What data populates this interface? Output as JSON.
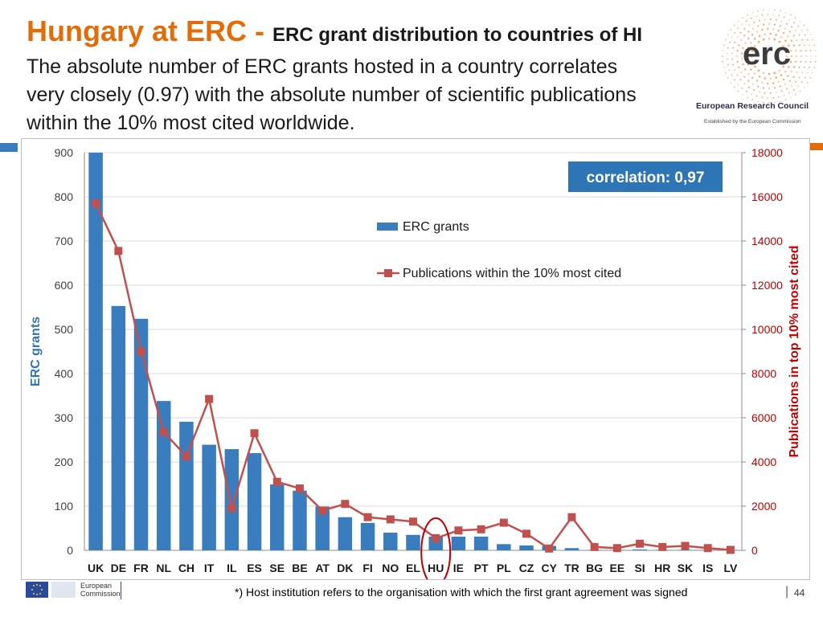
{
  "slide": {
    "title_main": "Hungary at ERC - ",
    "title_sub": "ERC grant distribution to countries of HI",
    "intro_lines": [
      "The absolute number of ERC grants hosted in a country correlates",
      "very closely (0.97) with the absolute number of scientific publications",
      "within the 10% most cited worldwide."
    ],
    "logo": {
      "wordmark": "erc",
      "org_name": "European Research Council",
      "tagline": "Established by the European Commission"
    },
    "footer": {
      "ec_label_1": "European",
      "ec_label_2": "Commission",
      "note": "*) Host institution refers to the organisation with which the first grant agreement was signed",
      "separator": "|",
      "page_number": "44"
    },
    "colors": {
      "title_orange": "#e36c0a",
      "bar_blue": "#3a7dbf",
      "line_red": "#c0504d",
      "corr_box": "#2e75b6",
      "highlight_ring": "#c00000"
    }
  },
  "chart_data": {
    "type": "bar",
    "categories": [
      "UK",
      "DE",
      "FR",
      "NL",
      "CH",
      "IT",
      "IL",
      "ES",
      "SE",
      "BE",
      "AT",
      "DK",
      "FI",
      "NO",
      "EL",
      "HU",
      "IE",
      "PT",
      "PL",
      "CZ",
      "CY",
      "TR",
      "BG",
      "EE",
      "SI",
      "HR",
      "SK",
      "IS",
      "LV"
    ],
    "series": [
      {
        "name": "ERC grants",
        "type": "bar",
        "axis": "left",
        "values": [
          900,
          553,
          524,
          338,
          291,
          239,
          229,
          220,
          149,
          135,
          99,
          75,
          62,
          40,
          35,
          31,
          31,
          31,
          14,
          11,
          10,
          5,
          1,
          1,
          2,
          1,
          1,
          1,
          1
        ]
      },
      {
        "name": "Publications within the 10% most cited",
        "type": "line",
        "axis": "right",
        "values": [
          15700,
          13550,
          9000,
          5350,
          4250,
          6850,
          1900,
          5300,
          3100,
          2800,
          1800,
          2100,
          1500,
          1400,
          1300,
          550,
          900,
          950,
          1250,
          750,
          80,
          1500,
          150,
          100,
          300,
          150,
          200,
          100,
          20
        ]
      }
    ],
    "left_axis": {
      "label": "ERC grants",
      "ylim": [
        0,
        900
      ],
      "ticks": [
        "0",
        "100",
        "200",
        "300",
        "400",
        "500",
        "600",
        "700",
        "800",
        "900"
      ]
    },
    "right_axis": {
      "label": "Publications in top 10% most cited",
      "ylim": [
        0,
        18000
      ],
      "ticks": [
        "0",
        "2000",
        "4000",
        "6000",
        "8000",
        "10000",
        "12000",
        "14000",
        "16000",
        "18000"
      ]
    },
    "annotation": "correlation: 0,97",
    "highlight_category": "HU",
    "legend_position": "center-right",
    "grid": true
  }
}
